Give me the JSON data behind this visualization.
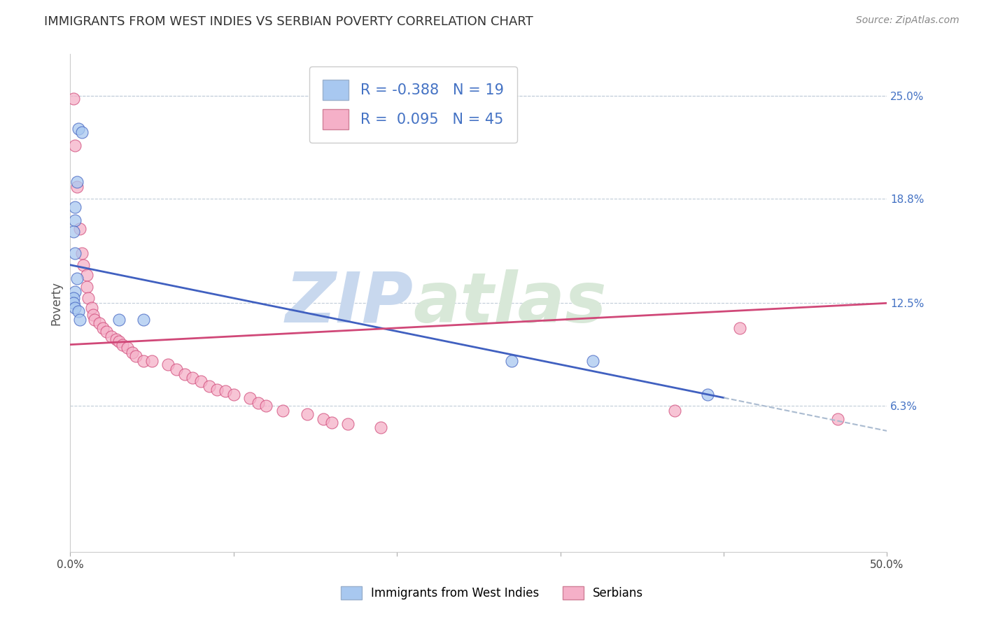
{
  "title": "IMMIGRANTS FROM WEST INDIES VS SERBIAN POVERTY CORRELATION CHART",
  "source": "Source: ZipAtlas.com",
  "ylabel": "Poverty",
  "ytick_values": [
    0.063,
    0.125,
    0.188,
    0.25
  ],
  "ytick_labels": [
    "6.3%",
    "12.5%",
    "18.8%",
    "25.0%"
  ],
  "xmin": 0.0,
  "xmax": 0.5,
  "ymin": -0.025,
  "ymax": 0.275,
  "color_blue": "#a8c8f0",
  "color_pink": "#f5b0c8",
  "color_blue_line": "#4060c0",
  "color_pink_line": "#d04878",
  "color_blue_text": "#4472c4",
  "color_grey_dashed": "#aabbd0",
  "watermark_zip": "ZIP",
  "watermark_atlas": "atlas",
  "watermark_color_zip": "#c8d8ee",
  "watermark_color_atlas": "#d8e8d8",
  "blue_points_x": [
    0.005,
    0.007,
    0.004,
    0.003,
    0.003,
    0.002,
    0.003,
    0.004,
    0.003,
    0.002,
    0.002,
    0.003,
    0.005,
    0.006,
    0.03,
    0.045,
    0.27,
    0.32,
    0.39
  ],
  "blue_points_y": [
    0.23,
    0.228,
    0.198,
    0.183,
    0.175,
    0.168,
    0.155,
    0.14,
    0.132,
    0.128,
    0.125,
    0.122,
    0.12,
    0.115,
    0.115,
    0.115,
    0.09,
    0.09,
    0.07
  ],
  "pink_points_x": [
    0.002,
    0.003,
    0.004,
    0.006,
    0.007,
    0.008,
    0.01,
    0.01,
    0.011,
    0.013,
    0.014,
    0.015,
    0.018,
    0.02,
    0.022,
    0.025,
    0.028,
    0.03,
    0.032,
    0.035,
    0.038,
    0.04,
    0.045,
    0.05,
    0.06,
    0.065,
    0.07,
    0.075,
    0.08,
    0.085,
    0.09,
    0.095,
    0.1,
    0.11,
    0.115,
    0.12,
    0.13,
    0.145,
    0.155,
    0.16,
    0.17,
    0.19,
    0.37,
    0.41,
    0.47
  ],
  "pink_points_y": [
    0.248,
    0.22,
    0.195,
    0.17,
    0.155,
    0.148,
    0.142,
    0.135,
    0.128,
    0.122,
    0.118,
    0.115,
    0.113,
    0.11,
    0.108,
    0.105,
    0.103,
    0.102,
    0.1,
    0.098,
    0.095,
    0.093,
    0.09,
    0.09,
    0.088,
    0.085,
    0.082,
    0.08,
    0.078,
    0.075,
    0.073,
    0.072,
    0.07,
    0.068,
    0.065,
    0.063,
    0.06,
    0.058,
    0.055,
    0.053,
    0.052,
    0.05,
    0.06,
    0.11,
    0.055
  ],
  "blue_line_x0": 0.0,
  "blue_line_y0": 0.148,
  "blue_line_x1": 0.4,
  "blue_line_y1": 0.068,
  "blue_line_xsolid_end": 0.4,
  "blue_line_xdash_end": 0.5,
  "pink_line_x0": 0.0,
  "pink_line_y0": 0.1,
  "pink_line_x1": 0.5,
  "pink_line_y1": 0.125
}
